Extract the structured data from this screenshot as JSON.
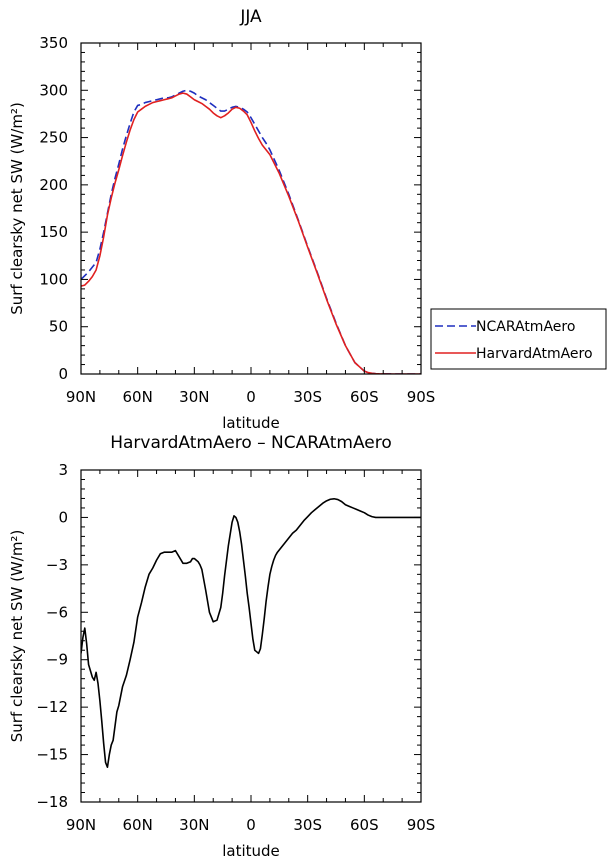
{
  "chart_data": [
    {
      "type": "line",
      "title": "JJA",
      "xlabel": "latitude",
      "ylabel": "Surf clearsky net SW (W/m²)",
      "xlim": [
        90,
        -90
      ],
      "ylim": [
        0,
        350
      ],
      "xticks": [
        90,
        60,
        30,
        0,
        -30,
        -60,
        -90
      ],
      "xtick_labels": [
        "90N",
        "60N",
        "30N",
        "0",
        "30S",
        "60S",
        "90S"
      ],
      "yticks": [
        0,
        50,
        100,
        150,
        200,
        250,
        300,
        350
      ],
      "ytick_labels": [
        "0",
        "50",
        "100",
        "150",
        "200",
        "250",
        "300",
        "350"
      ],
      "legend_position": "right",
      "series": [
        {
          "name": "NCARAtmAero",
          "color": "#1f2fbf",
          "dash": "dashed",
          "x": [
            90,
            88,
            86,
            84,
            82,
            80,
            78,
            76,
            74,
            72,
            70,
            68,
            66,
            64,
            62,
            60,
            58,
            56,
            54,
            52,
            50,
            48,
            46,
            44,
            42,
            40,
            38,
            36,
            34,
            32,
            30,
            28,
            26,
            24,
            22,
            20,
            18,
            16,
            14,
            12,
            10,
            8,
            6,
            4,
            2,
            0,
            -2,
            -4,
            -6,
            -8,
            -10,
            -15,
            -20,
            -25,
            -30,
            -35,
            -40,
            -45,
            -50,
            -55,
            -60,
            -62,
            -64,
            -66,
            -68,
            -70,
            -75,
            -80,
            -85,
            -90
          ],
          "y": [
            100,
            104,
            108,
            113,
            118,
            132,
            150,
            170,
            190,
            207,
            222,
            238,
            252,
            265,
            277,
            284,
            285,
            287,
            288,
            289,
            290,
            291,
            292,
            292,
            293,
            295,
            297,
            299,
            300,
            299,
            297,
            294,
            292,
            290,
            287,
            284,
            281,
            278,
            278,
            280,
            282,
            283,
            282,
            280,
            277,
            271,
            264,
            257,
            250,
            244,
            237,
            215,
            190,
            163,
            135,
            108,
            80,
            54,
            30,
            12,
            3,
            1.5,
            0.8,
            0.4,
            0.2,
            0.1,
            0,
            0,
            0,
            0
          ]
        },
        {
          "name": "HarvardAtmAero",
          "color": "#e02020",
          "dash": "solid",
          "x": [
            90,
            88,
            86,
            84,
            82,
            80,
            78,
            76,
            74,
            72,
            70,
            68,
            66,
            64,
            62,
            60,
            58,
            56,
            54,
            52,
            50,
            48,
            46,
            44,
            42,
            40,
            38,
            36,
            34,
            32,
            30,
            28,
            26,
            24,
            22,
            20,
            18,
            16,
            14,
            12,
            10,
            8,
            6,
            4,
            2,
            0,
            -2,
            -4,
            -6,
            -8,
            -10,
            -15,
            -20,
            -25,
            -30,
            -35,
            -40,
            -45,
            -50,
            -55,
            -60,
            -62,
            -64,
            -66,
            -68,
            -70,
            -75,
            -80,
            -85,
            -90
          ],
          "y": [
            93,
            94,
            98,
            103,
            110,
            125,
            145,
            168,
            186,
            202,
            216,
            231,
            245,
            258,
            269,
            277,
            280,
            283,
            285,
            287,
            288,
            289,
            290,
            291,
            292,
            294,
            296,
            297,
            296,
            293,
            290,
            288,
            286,
            283,
            280,
            276,
            273,
            271,
            273,
            276,
            280,
            282,
            281,
            278,
            274,
            266,
            257,
            249,
            242,
            237,
            232,
            212,
            188,
            162,
            134,
            107,
            79,
            53,
            30,
            12,
            3,
            1.5,
            0.8,
            0.4,
            0.2,
            0.1,
            0,
            0,
            0,
            0
          ]
        }
      ]
    },
    {
      "type": "line",
      "title": "HarvardAtmAero – NCARAtmAero",
      "xlabel": "latitude",
      "ylabel": "Surf clearsky net SW (W/m²)",
      "xlim": [
        90,
        -90
      ],
      "ylim": [
        -18,
        3
      ],
      "xticks": [
        90,
        60,
        30,
        0,
        -30,
        -60,
        -90
      ],
      "xtick_labels": [
        "90N",
        "60N",
        "30N",
        "0",
        "30S",
        "60S",
        "90S"
      ],
      "yticks": [
        3,
        0,
        -3,
        -6,
        -9,
        -12,
        -15,
        -18
      ],
      "ytick_labels": [
        "3",
        "0",
        "−3",
        "−6",
        "−9",
        "−12",
        "−15",
        "−18"
      ],
      "series": [
        {
          "color": "#000000",
          "dash": "solid",
          "x": [
            90,
            89,
            88,
            87,
            86,
            85,
            84,
            83,
            82,
            81,
            80,
            79,
            78,
            77,
            76,
            75,
            74,
            73,
            72,
            71,
            70,
            69,
            68,
            66,
            64,
            62,
            60,
            58,
            56,
            54,
            52,
            50,
            48,
            46,
            44,
            42,
            40,
            38,
            36,
            34,
            33,
            32,
            31,
            30,
            29,
            28,
            27,
            26,
            24,
            22,
            20,
            18,
            16,
            15,
            14,
            12,
            10,
            9,
            8,
            7,
            6,
            5,
            4,
            3,
            2,
            1,
            0,
            -1,
            -2,
            -3,
            -4,
            -5,
            -6,
            -7,
            -8,
            -9,
            -10,
            -11,
            -12,
            -13,
            -14,
            -16,
            -18,
            -20,
            -22,
            -24,
            -26,
            -28,
            -30,
            -32,
            -34,
            -36,
            -38,
            -40,
            -42,
            -44,
            -46,
            -48,
            -50,
            -52,
            -54,
            -56,
            -58,
            -60,
            -62,
            -64,
            -66,
            -68,
            -70,
            -72,
            -75,
            -80,
            -85,
            -90
          ],
          "y": [
            -8.6,
            -7.6,
            -7.0,
            -8.0,
            -9.3,
            -9.7,
            -10.1,
            -10.3,
            -9.8,
            -10.5,
            -11.6,
            -12.9,
            -14.3,
            -15.5,
            -15.8,
            -15.0,
            -14.4,
            -14.1,
            -13.2,
            -12.3,
            -11.9,
            -11.3,
            -10.7,
            -10.0,
            -9.0,
            -7.9,
            -6.3,
            -5.4,
            -4.4,
            -3.6,
            -3.2,
            -2.7,
            -2.3,
            -2.2,
            -2.2,
            -2.2,
            -2.1,
            -2.5,
            -2.9,
            -2.9,
            -2.85,
            -2.8,
            -2.6,
            -2.6,
            -2.7,
            -2.8,
            -3.0,
            -3.3,
            -4.6,
            -6.0,
            -6.6,
            -6.5,
            -5.7,
            -4.8,
            -3.7,
            -1.8,
            -0.3,
            0.1,
            0.0,
            -0.3,
            -0.9,
            -1.7,
            -2.7,
            -3.7,
            -4.8,
            -5.7,
            -6.7,
            -7.7,
            -8.4,
            -8.5,
            -8.6,
            -8.3,
            -7.4,
            -6.4,
            -5.3,
            -4.4,
            -3.6,
            -3.1,
            -2.7,
            -2.4,
            -2.2,
            -1.9,
            -1.6,
            -1.3,
            -1.0,
            -0.8,
            -0.5,
            -0.2,
            0.05,
            0.3,
            0.5,
            0.7,
            0.9,
            1.05,
            1.15,
            1.18,
            1.13,
            1.0,
            0.8,
            0.7,
            0.6,
            0.5,
            0.4,
            0.3,
            0.15,
            0.05,
            0.0,
            0.0,
            0.0,
            0.0,
            0.0,
            0.0,
            0.0,
            0.0
          ]
        }
      ]
    }
  ]
}
